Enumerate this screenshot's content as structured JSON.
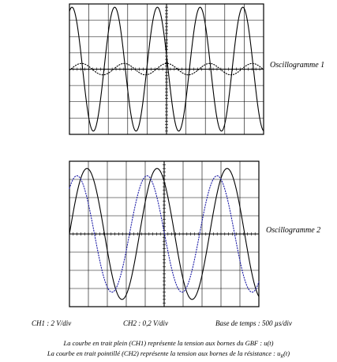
{
  "oscillogram_1": {
    "label": "Oscillogramme 1",
    "grid": {
      "divisions_x": 10,
      "divisions_y": 8
    },
    "solid_trace": {
      "channel": "CH1",
      "amplitude_div": 3.8,
      "period_div": 2.2,
      "phase_rad": 1.2,
      "color": "#000000"
    },
    "dotted_trace": {
      "channel": "CH2",
      "amplitude_div": 0.35,
      "period_div": 2.2,
      "phase_rad": -0.2,
      "color": "#000000"
    }
  },
  "oscillogram_2": {
    "label": "Oscillogramme 2",
    "grid": {
      "divisions_x": 10,
      "divisions_y": 8
    },
    "solid_trace": {
      "channel": "CH1",
      "amplitude_div": 3.6,
      "period_div": 3.7,
      "phase_rad": 0.0,
      "color": "#000000"
    },
    "dotted_trace": {
      "channel": "CH2",
      "amplitude_div": 3.2,
      "period_div": 3.7,
      "phase_rad": 0.9,
      "color": "#1a1aa6"
    }
  },
  "captions": {
    "ch1": "CH1 : 2 V/div",
    "ch2": "CH2 : 0,2 V/div",
    "time_base": "Base de temps : 500 µs/div"
  },
  "notes": {
    "line1": "La courbe en trait plein (CH1) représente la tension aux bornes du GBF : u(t)",
    "line2_prefix": "La courbe en trait pointillé (CH2) représente la tension aux bornes de la résistance : u",
    "line2_sub": "R",
    "line2_suffix": "(t)"
  }
}
